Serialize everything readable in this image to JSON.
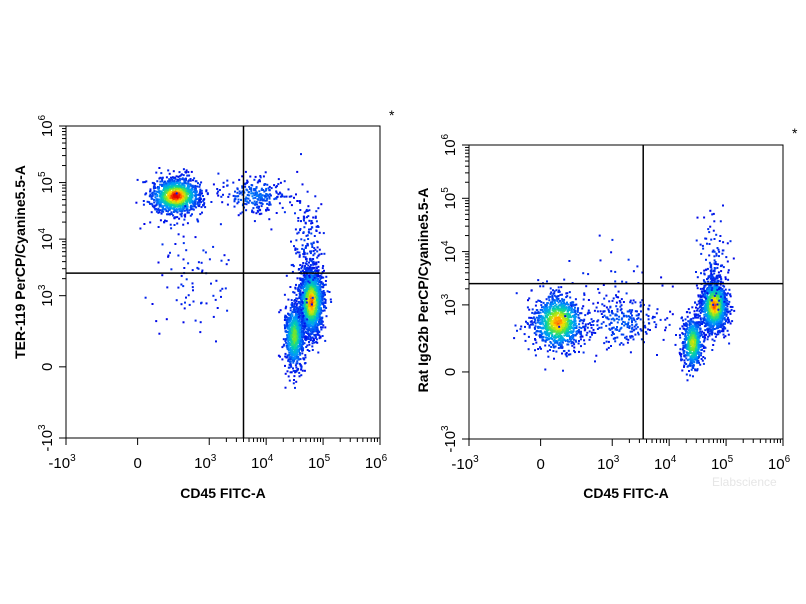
{
  "chart_data": [
    {
      "type": "scatter",
      "subtype": "flow-cytometry-density-dot-plot",
      "xlabel": "CD45 FITC-A",
      "ylabel": "TER-119 PerCP/Cyanine5.5-A",
      "x_scale": "biexponential",
      "y_scale": "biexponential",
      "xlim": [
        -1000,
        1000000
      ],
      "ylim": [
        -1000,
        1000000
      ],
      "x_ticks": [
        {
          "base": "-10",
          "exp": "3",
          "value": -1000
        },
        {
          "base": "0",
          "exp": "",
          "value": 0
        },
        {
          "base": "10",
          "exp": "3",
          "value": 1000
        },
        {
          "base": "10",
          "exp": "4",
          "value": 10000
        },
        {
          "base": "10",
          "exp": "5",
          "value": 100000
        },
        {
          "base": "10",
          "exp": "6",
          "value": 1000000
        }
      ],
      "y_ticks": [
        {
          "base": "-10",
          "exp": "3",
          "value": -1000
        },
        {
          "base": "0",
          "exp": "",
          "value": 0
        },
        {
          "base": "10",
          "exp": "3",
          "value": 1000
        },
        {
          "base": "10",
          "exp": "4",
          "value": 10000
        },
        {
          "base": "10",
          "exp": "5",
          "value": 100000
        },
        {
          "base": "10",
          "exp": "6",
          "value": 1000000
        }
      ],
      "quadrant_gate": {
        "x": 4000,
        "y": 2500
      },
      "marker": "*",
      "populations": [
        {
          "x": 250,
          "y": 60000,
          "count": 1100,
          "sx": 0.22,
          "sy": 0.16,
          "peak": 1.0
        },
        {
          "x": 6000,
          "y": 60000,
          "count": 260,
          "sx": 0.3,
          "sy": 0.16,
          "peak": 0.15
        },
        {
          "x": 60000,
          "y": 800,
          "count": 1500,
          "sx": 0.11,
          "sy": 0.3,
          "peak": 0.9
        },
        {
          "x": 30000,
          "y": 200,
          "count": 700,
          "sx": 0.09,
          "sy": 0.3,
          "peak": 0.6
        },
        {
          "x": 50000,
          "y": 8000,
          "count": 160,
          "sx": 0.14,
          "sy": 0.45,
          "peak": 0.05
        },
        {
          "x": 500,
          "y": 3000,
          "count": 90,
          "sx": 0.4,
          "sy": 0.55,
          "peak": 0.02
        }
      ]
    },
    {
      "type": "scatter",
      "subtype": "flow-cytometry-density-dot-plot",
      "xlabel": "CD45 FITC-A",
      "ylabel": "Rat IgG2b PerCP/Cyanine5.5-A",
      "x_scale": "biexponential",
      "y_scale": "biexponential",
      "xlim": [
        -1000,
        1000000
      ],
      "ylim": [
        -1000,
        1000000
      ],
      "x_ticks": [
        {
          "base": "-10",
          "exp": "3",
          "value": -1000
        },
        {
          "base": "0",
          "exp": "",
          "value": 0
        },
        {
          "base": "10",
          "exp": "3",
          "value": 1000
        },
        {
          "base": "10",
          "exp": "4",
          "value": 10000
        },
        {
          "base": "10",
          "exp": "5",
          "value": 100000
        },
        {
          "base": "10",
          "exp": "6",
          "value": 1000000
        }
      ],
      "y_ticks": [
        {
          "base": "-10",
          "exp": "3",
          "value": -1000
        },
        {
          "base": "0",
          "exp": "",
          "value": 0
        },
        {
          "base": "10",
          "exp": "3",
          "value": 1000
        },
        {
          "base": "10",
          "exp": "4",
          "value": 10000
        },
        {
          "base": "10",
          "exp": "5",
          "value": 100000
        },
        {
          "base": "10",
          "exp": "6",
          "value": 1000000
        }
      ],
      "quadrant_gate": {
        "x": 3500,
        "y": 2500
      },
      "marker": "*",
      "populations": [
        {
          "x": 100,
          "y": 500,
          "count": 1000,
          "sx": 0.22,
          "sy": 0.26,
          "peak": 0.85
        },
        {
          "x": 1500,
          "y": 500,
          "count": 250,
          "sx": 0.35,
          "sy": 0.25,
          "peak": 0.1
        },
        {
          "x": 60000,
          "y": 1000,
          "count": 1200,
          "sx": 0.12,
          "sy": 0.25,
          "peak": 0.9
        },
        {
          "x": 25000,
          "y": 200,
          "count": 550,
          "sx": 0.09,
          "sy": 0.25,
          "peak": 0.7
        },
        {
          "x": 60000,
          "y": 6000,
          "count": 120,
          "sx": 0.13,
          "sy": 0.45,
          "peak": 0.05
        },
        {
          "x": 800,
          "y": 3000,
          "count": 35,
          "sx": 0.45,
          "sy": 0.4,
          "peak": 0.02
        }
      ]
    }
  ],
  "watermark": "Elabscience"
}
